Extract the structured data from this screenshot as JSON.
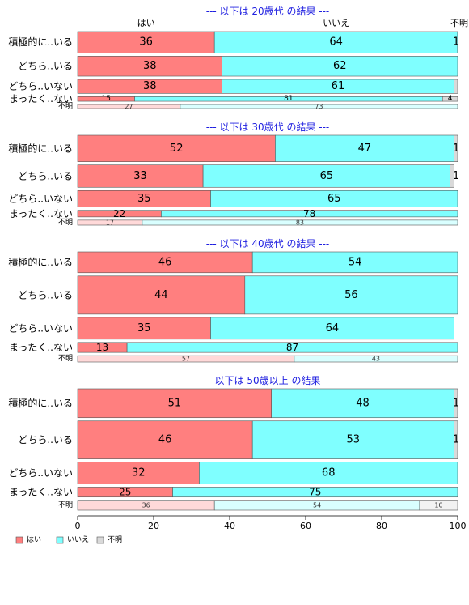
{
  "chart_data": {
    "type": "bar",
    "stacked": true,
    "orientation": "horizontal",
    "normalized": true,
    "xlim": [
      0,
      100
    ],
    "x_ticks": [
      0,
      20,
      40,
      60,
      80,
      100
    ],
    "grid": false,
    "legend": {
      "placement": "bottom-left",
      "entries": [
        {
          "key": "yes",
          "label": "はい"
        },
        {
          "key": "no",
          "label": "いいえ"
        },
        {
          "key": "unknown",
          "label": "不明"
        }
      ]
    },
    "series_colors": {
      "yes": "#FF7F7F",
      "no": "#7FFFFF",
      "unknown": "#D9D9D9",
      "yes_light": "#FFD9D9",
      "no_light": "#D9FFFF",
      "unknown_light": "#F2F2F2",
      "title": "#1F1FE0",
      "border": "#555555"
    },
    "column_header": [
      "はい",
      "いいえ",
      "不明"
    ],
    "panels": [
      {
        "title": "--- 以下は 20歳代 の結果 ---",
        "rows": [
          {
            "label": "積極的に..いる",
            "weight": 3.2,
            "values": [
              36,
              64,
              1
            ],
            "labels": [
              "36",
              "64",
              "1"
            ],
            "small": false,
            "light": false
          },
          {
            "label": "どちら..いる",
            "weight": 3.0,
            "values": [
              38,
              62,
              0
            ],
            "labels": [
              "38",
              "62",
              ""
            ],
            "small": false,
            "light": false
          },
          {
            "label": "どちら..いない",
            "weight": 2.1,
            "values": [
              38,
              61,
              1
            ],
            "labels": [
              "38",
              "61",
              ""
            ],
            "small": false,
            "light": false
          },
          {
            "label": "まったく..ない",
            "weight": 0.7,
            "values": [
              15,
              81,
              4
            ],
            "labels": [
              "15",
              "81",
              "4"
            ],
            "small": true,
            "light": false
          },
          {
            "label": "不明",
            "weight": 0.6,
            "values": [
              27,
              73,
              0
            ],
            "labels": [
              "27",
              "73",
              ""
            ],
            "small": true,
            "light": true
          }
        ]
      },
      {
        "title": "--- 以下は 30歳代 の結果 ---",
        "rows": [
          {
            "label": "積極的に..いる",
            "weight": 3.2,
            "values": [
              52,
              47,
              1
            ],
            "labels": [
              "52",
              "47",
              "1"
            ],
            "small": false,
            "light": false
          },
          {
            "label": "どちら..いる",
            "weight": 2.7,
            "values": [
              33,
              65,
              1
            ],
            "labels": [
              "33",
              "65",
              "1"
            ],
            "small": false,
            "light": false
          },
          {
            "label": "どちら..いない",
            "weight": 2.0,
            "values": [
              35,
              65,
              0
            ],
            "labels": [
              "35",
              "65",
              ""
            ],
            "small": false,
            "light": false
          },
          {
            "label": "まったく..ない",
            "weight": 0.8,
            "values": [
              22,
              78,
              0
            ],
            "labels": [
              "22",
              "78",
              ""
            ],
            "small": false,
            "light": false
          },
          {
            "label": "不明",
            "weight": 0.6,
            "values": [
              17,
              83,
              0
            ],
            "labels": [
              "17",
              "83",
              ""
            ],
            "small": true,
            "light": true
          }
        ]
      },
      {
        "title": "--- 以下は 40歳代 の結果 ---",
        "rows": [
          {
            "label": "積極的に..いる",
            "weight": 2.3,
            "values": [
              46,
              54,
              0
            ],
            "labels": [
              "46",
              "54",
              ""
            ],
            "small": false,
            "light": false
          },
          {
            "label": "どちら..いる",
            "weight": 4.2,
            "values": [
              44,
              56,
              0
            ],
            "labels": [
              "44",
              "56",
              ""
            ],
            "small": false,
            "light": false
          },
          {
            "label": "どちら..いない",
            "weight": 2.4,
            "values": [
              35,
              64,
              0
            ],
            "labels": [
              "35",
              "64",
              ""
            ],
            "small": false,
            "light": false
          },
          {
            "label": "まったく..ない",
            "weight": 1.1,
            "values": [
              13,
              87,
              0
            ],
            "labels": [
              "13",
              "87",
              ""
            ],
            "small": false,
            "light": false
          },
          {
            "label": "不明",
            "weight": 0.7,
            "values": [
              57,
              43,
              0
            ],
            "labels": [
              "57",
              "43",
              ""
            ],
            "small": true,
            "light": true
          }
        ]
      },
      {
        "title": "--- 以下は 50歳以上 の結果 ---",
        "rows": [
          {
            "label": "積極的に..いる",
            "weight": 3.2,
            "values": [
              51,
              48,
              1
            ],
            "labels": [
              "51",
              "48",
              "1"
            ],
            "small": false,
            "light": false
          },
          {
            "label": "どちら..いる",
            "weight": 4.2,
            "values": [
              46,
              53,
              1
            ],
            "labels": [
              "46",
              "53",
              "1"
            ],
            "small": false,
            "light": false
          },
          {
            "label": "どちら..いない",
            "weight": 2.4,
            "values": [
              32,
              68,
              0
            ],
            "labels": [
              "32",
              "68",
              ""
            ],
            "small": false,
            "light": false
          },
          {
            "label": "まったく..ない",
            "weight": 1.1,
            "values": [
              25,
              75,
              0
            ],
            "labels": [
              "25",
              "75",
              ""
            ],
            "small": false,
            "light": false
          },
          {
            "label": "不明",
            "weight": 1.1,
            "values": [
              36,
              54,
              10
            ],
            "labels": [
              "36",
              "54",
              "10"
            ],
            "small": true,
            "light": true
          }
        ]
      }
    ]
  }
}
